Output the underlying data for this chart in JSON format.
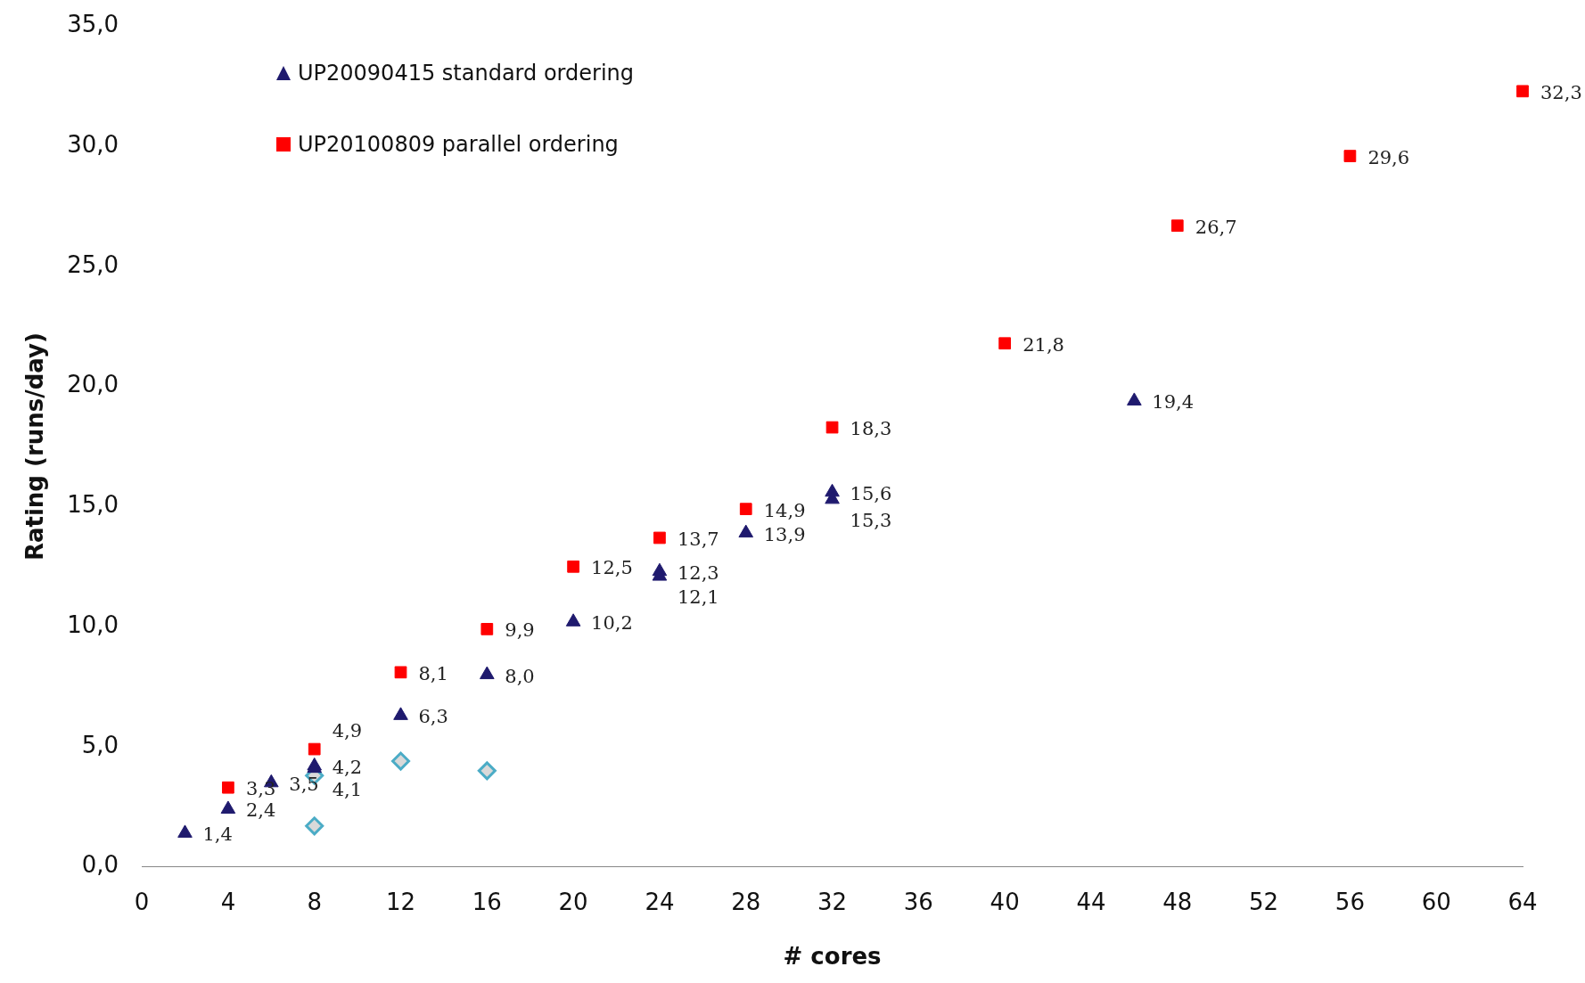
{
  "chart_data": {
    "type": "scatter",
    "xlabel": "# cores",
    "ylabel": "Rating (runs/day)",
    "xlim": [
      0,
      64
    ],
    "xticks": [
      0,
      4,
      8,
      12,
      16,
      20,
      24,
      28,
      32,
      36,
      40,
      44,
      48,
      52,
      56,
      60,
      64
    ],
    "ylim": [
      0,
      35
    ],
    "yticks": [
      {
        "value": 0,
        "label": "0,0"
      },
      {
        "value": 5,
        "label": "5,0"
      },
      {
        "value": 10,
        "label": "10,0"
      },
      {
        "value": 15,
        "label": "15,0"
      },
      {
        "value": 20,
        "label": "20,0"
      },
      {
        "value": 25,
        "label": "25,0"
      },
      {
        "value": 30,
        "label": "30,0"
      },
      {
        "value": 35,
        "label": "35,0"
      }
    ],
    "grid": false,
    "legend": "top left",
    "series": [
      {
        "name": "UP20090415 standard ordering",
        "color": "#1f1a6e",
        "marker": "triangle",
        "x": [
          2,
          4,
          6,
          8,
          8,
          12,
          16,
          20,
          24,
          24,
          28,
          32,
          32,
          46
        ],
        "values": [
          1.4,
          2.4,
          3.5,
          4.2,
          4.1,
          6.3,
          8.0,
          10.2,
          12.3,
          12.1,
          13.9,
          15.6,
          15.3,
          19.4
        ],
        "value_labels": [
          "1,4",
          "2,4",
          "3,5",
          "4,2",
          "4,1",
          "6,3",
          "8,0",
          "10,2",
          "12,3",
          "12,1",
          "13,9",
          "15,6",
          "15,3",
          "19,4"
        ]
      },
      {
        "name": "UP20100809 parallel ordering",
        "color": "#ff0000",
        "marker": "square",
        "x": [
          4,
          8,
          12,
          16,
          20,
          24,
          28,
          32,
          40,
          48,
          56,
          64
        ],
        "values": [
          3.3,
          4.9,
          8.1,
          9.9,
          12.5,
          13.7,
          14.9,
          18.3,
          21.8,
          26.7,
          29.6,
          32.3
        ],
        "value_labels": [
          "3,3",
          "4,9",
          "8,1",
          "9,9",
          "12,5",
          "13,7",
          "14,9",
          "18,3",
          "21,8",
          "26,7",
          "29,6",
          "32,3"
        ]
      },
      {
        "color": "#4bacc6",
        "marker": "diamond",
        "x": [
          8,
          8,
          12,
          16
        ],
        "values": [
          3.8,
          1.7,
          4.4,
          4.0
        ]
      }
    ]
  }
}
